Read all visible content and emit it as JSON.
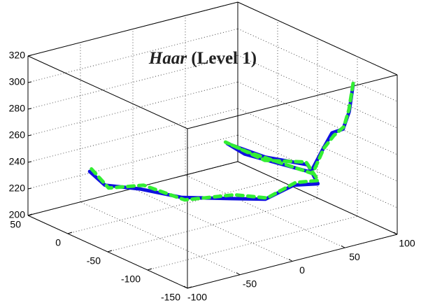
{
  "chart_data": {
    "type": "line3d",
    "title": {
      "italic": "Haar",
      "text": "(Level 1)"
    },
    "xlim": [
      -100,
      100
    ],
    "xticks": [
      -100,
      -50,
      0,
      50,
      100
    ],
    "ylim": [
      -150,
      50
    ],
    "yticks": [
      -150,
      -100,
      -50,
      0,
      50
    ],
    "zlim": [
      200,
      320
    ],
    "zticks": [
      200,
      220,
      240,
      260,
      280,
      300,
      320
    ],
    "grid": true,
    "box": true,
    "series": [
      {
        "color": "#1010e0",
        "line_style": "solid",
        "x": [
          -64,
          -57,
          -39,
          -14,
          25,
          54,
          85,
          89,
          87,
          73,
          52,
          61,
          86,
          89,
          91,
          94,
          96,
          96
        ],
        "y": [
          20,
          10,
          -10,
          -30,
          -40,
          -45,
          -40,
          -65,
          -55,
          -20,
          0,
          -10,
          -60,
          -70,
          -80,
          -90,
          -95,
          -100
        ],
        "z": [
          234,
          225,
          224,
          218,
          212,
          207,
          210,
          217,
          229,
          228,
          237,
          230,
          225,
          243,
          259,
          264,
          278,
          300
        ]
      },
      {
        "color": "#33ee33",
        "line_style": "dashed",
        "x": [
          -63,
          -55,
          -37,
          -12,
          27,
          55,
          86,
          90,
          86,
          72,
          51,
          62,
          87,
          90,
          92,
          94,
          95,
          96
        ],
        "y": [
          19,
          8,
          -12,
          -31,
          -42,
          -46,
          -41,
          -64,
          -54,
          -21,
          1,
          -11,
          -61,
          -71,
          -81,
          -91,
          -96,
          -100
        ],
        "z": [
          236,
          223,
          227,
          216,
          215,
          208,
          212,
          219,
          231,
          226,
          238,
          232,
          224,
          245,
          257,
          266,
          280,
          301
        ]
      }
    ]
  }
}
